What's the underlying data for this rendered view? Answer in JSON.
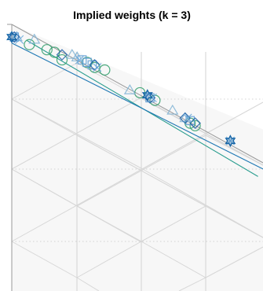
{
  "chart_data": {
    "type": "scatter",
    "title": "Implied weights (k = 3)",
    "coordinate_system": "ternary",
    "grid": true,
    "lines": [
      {
        "color": "#2a9d8f",
        "from": [
          0.55,
          0.07
        ],
        "to": [
          0.78,
          0.92
        ]
      },
      {
        "color": "#1f78b4",
        "from": [
          0.49,
          0.08
        ],
        "to": [
          0.82,
          0.89
        ]
      }
    ],
    "series": [
      {
        "marker_style": "circle",
        "color": "#2e9e6a",
        "points": [
          [
            0.07,
            0.2
          ],
          [
            0.14,
            0.22
          ],
          [
            0.17,
            0.23
          ],
          [
            0.2,
            0.26
          ],
          [
            0.3,
            0.27
          ],
          [
            0.33,
            0.29
          ],
          [
            0.37,
            0.3
          ],
          [
            0.51,
            0.39
          ],
          [
            0.57,
            0.42
          ],
          [
            0.71,
            0.51
          ],
          [
            0.73,
            0.52
          ]
        ]
      },
      {
        "marker_style": "triangle",
        "color": "#7fb3d5",
        "points": [
          [
            0.02,
            0.17
          ],
          [
            0.09,
            0.18
          ],
          [
            0.24,
            0.24
          ],
          [
            0.26,
            0.25
          ],
          [
            0.47,
            0.38
          ],
          [
            0.64,
            0.46
          ],
          [
            0.69,
            0.49
          ]
        ]
      },
      {
        "marker_style": "square",
        "color": "#5b9bd5",
        "points": [
          [
            0.01,
            0.17
          ],
          [
            0.28,
            0.26
          ],
          [
            0.3,
            0.27
          ],
          [
            0.32,
            0.28
          ],
          [
            0.55,
            0.41
          ],
          [
            0.71,
            0.5
          ]
        ]
      },
      {
        "marker_style": "diamond",
        "color": "#1f5fa8",
        "points": [
          [
            0.01,
            0.17
          ],
          [
            0.2,
            0.24
          ],
          [
            0.33,
            0.28
          ],
          [
            0.55,
            0.41
          ],
          [
            0.69,
            0.49
          ],
          [
            0.73,
            0.51
          ]
        ]
      },
      {
        "marker_style": "x-cross",
        "color": "#6aa8d9",
        "points": [
          [
            0.03,
            0.18
          ],
          [
            0.27,
            0.26
          ],
          [
            0.34,
            0.29
          ],
          [
            0.56,
            0.41
          ],
          [
            0.7,
            0.49
          ],
          [
            0.87,
            0.58
          ]
        ]
      },
      {
        "marker_style": "star",
        "color": "#1565a7",
        "points": [
          [
            0.0,
            0.17
          ],
          [
            0.54,
            0.4
          ],
          [
            0.87,
            0.58
          ]
        ]
      }
    ]
  }
}
